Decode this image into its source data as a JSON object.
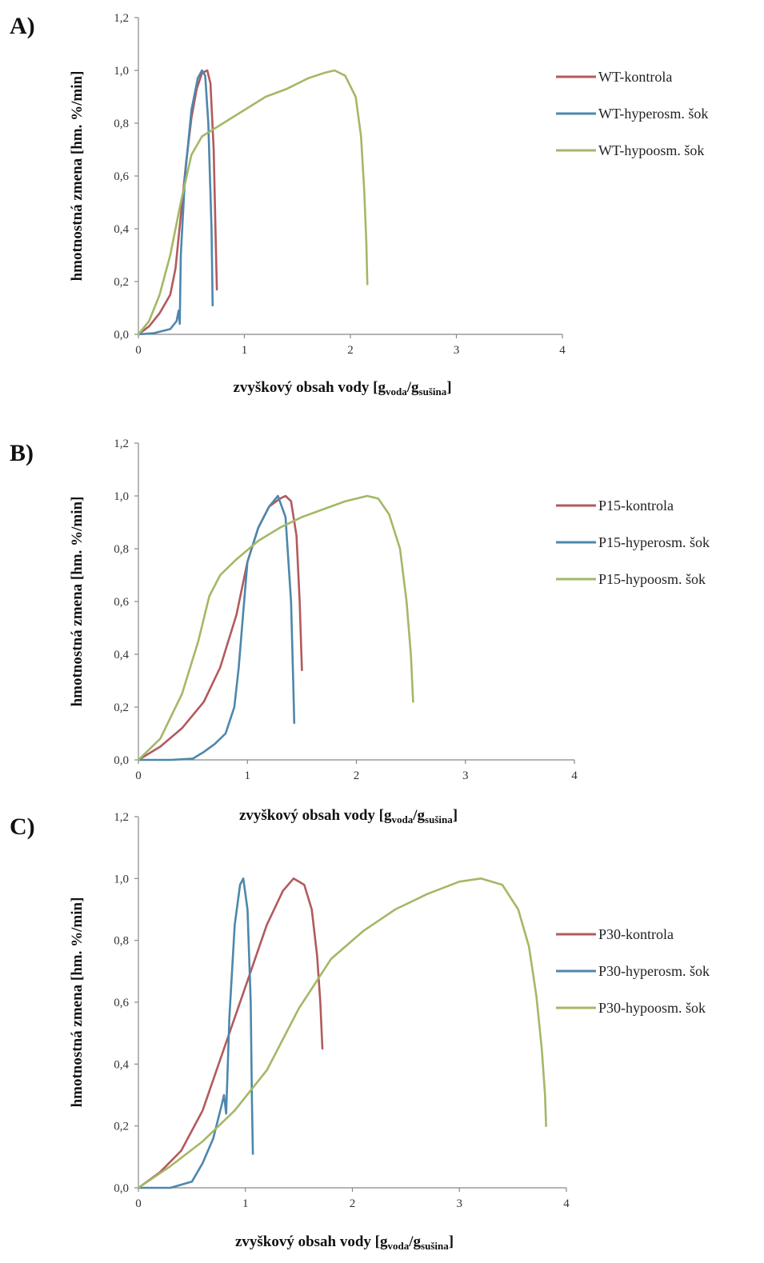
{
  "colors": {
    "kontrola": "#B25A5D",
    "hyperosm": "#4D87AC",
    "hypoosm": "#A3B866"
  },
  "chart_data": [
    {
      "type": "line",
      "panel_label": "A)",
      "xlabel_main": "zvyškový obsah vody [g",
      "xlabel_sub1": "voda",
      "xlabel_sep": "/g",
      "xlabel_sub2": "sušina",
      "xlabel_end": "]",
      "ylabel": "hmotnostná zmena [hm. %/min]",
      "xlim": [
        0,
        4
      ],
      "ylim": [
        0,
        1.2
      ],
      "xticks": [
        "0",
        "1",
        "2",
        "3",
        "4"
      ],
      "yticks": [
        "0,0",
        "0,2",
        "0,4",
        "0,6",
        "0,8",
        "1,0",
        "1,2"
      ],
      "legend_position": "right",
      "series": [
        {
          "name": "WT-kontrola",
          "color_key": "kontrola",
          "points": [
            [
              0.0,
              0.0
            ],
            [
              0.1,
              0.03
            ],
            [
              0.2,
              0.08
            ],
            [
              0.3,
              0.15
            ],
            [
              0.35,
              0.25
            ],
            [
              0.4,
              0.45
            ],
            [
              0.45,
              0.65
            ],
            [
              0.5,
              0.82
            ],
            [
              0.55,
              0.93
            ],
            [
              0.6,
              0.99
            ],
            [
              0.65,
              1.0
            ],
            [
              0.68,
              0.95
            ],
            [
              0.71,
              0.7
            ],
            [
              0.73,
              0.35
            ],
            [
              0.74,
              0.17
            ]
          ]
        },
        {
          "name": "WT-hyperosm. šok",
          "color_key": "hyperosm",
          "points": [
            [
              0.0,
              0.0
            ],
            [
              0.15,
              0.005
            ],
            [
              0.3,
              0.02
            ],
            [
              0.36,
              0.05
            ],
            [
              0.38,
              0.09
            ],
            [
              0.39,
              0.04
            ],
            [
              0.4,
              0.3
            ],
            [
              0.44,
              0.6
            ],
            [
              0.5,
              0.85
            ],
            [
              0.56,
              0.97
            ],
            [
              0.6,
              1.0
            ],
            [
              0.63,
              0.98
            ],
            [
              0.66,
              0.8
            ],
            [
              0.69,
              0.4
            ],
            [
              0.7,
              0.11
            ]
          ]
        },
        {
          "name": "WT-hypoosm. šok",
          "color_key": "hypoosm",
          "points": [
            [
              0.0,
              0.0
            ],
            [
              0.1,
              0.05
            ],
            [
              0.2,
              0.15
            ],
            [
              0.3,
              0.3
            ],
            [
              0.4,
              0.5
            ],
            [
              0.5,
              0.68
            ],
            [
              0.6,
              0.75
            ],
            [
              0.8,
              0.8
            ],
            [
              1.0,
              0.85
            ],
            [
              1.2,
              0.9
            ],
            [
              1.4,
              0.93
            ],
            [
              1.6,
              0.97
            ],
            [
              1.75,
              0.99
            ],
            [
              1.85,
              1.0
            ],
            [
              1.95,
              0.98
            ],
            [
              2.05,
              0.9
            ],
            [
              2.1,
              0.75
            ],
            [
              2.13,
              0.55
            ],
            [
              2.15,
              0.35
            ],
            [
              2.16,
              0.19
            ]
          ]
        }
      ]
    },
    {
      "type": "line",
      "panel_label": "B)",
      "xlabel_main": "zvyškový obsah vody [g",
      "xlabel_sub1": "voda",
      "xlabel_sep": "/g",
      "xlabel_sub2": "sušina",
      "xlabel_end": "]",
      "ylabel": "hmotnostná zmena [hm. %/min]",
      "xlim": [
        0,
        4
      ],
      "ylim": [
        0,
        1.2
      ],
      "xticks": [
        "0",
        "1",
        "2",
        "3",
        "4"
      ],
      "yticks": [
        "0,0",
        "0,2",
        "0,4",
        "0,6",
        "0,8",
        "1,0",
        "1,2"
      ],
      "legend_position": "right",
      "series": [
        {
          "name": "P15-kontrola",
          "color_key": "kontrola",
          "points": [
            [
              0.0,
              0.0
            ],
            [
              0.2,
              0.05
            ],
            [
              0.4,
              0.12
            ],
            [
              0.6,
              0.22
            ],
            [
              0.75,
              0.35
            ],
            [
              0.9,
              0.55
            ],
            [
              1.0,
              0.75
            ],
            [
              1.1,
              0.88
            ],
            [
              1.2,
              0.96
            ],
            [
              1.3,
              0.99
            ],
            [
              1.35,
              1.0
            ],
            [
              1.4,
              0.98
            ],
            [
              1.45,
              0.85
            ],
            [
              1.48,
              0.6
            ],
            [
              1.5,
              0.34
            ]
          ]
        },
        {
          "name": "P15-hyperosm. šok",
          "color_key": "hyperosm",
          "points": [
            [
              0.0,
              0.0
            ],
            [
              0.3,
              0.0
            ],
            [
              0.5,
              0.005
            ],
            [
              0.6,
              0.03
            ],
            [
              0.7,
              0.06
            ],
            [
              0.8,
              0.1
            ],
            [
              0.88,
              0.2
            ],
            [
              0.92,
              0.35
            ],
            [
              0.96,
              0.55
            ],
            [
              1.0,
              0.75
            ],
            [
              1.1,
              0.88
            ],
            [
              1.2,
              0.96
            ],
            [
              1.28,
              1.0
            ],
            [
              1.35,
              0.92
            ],
            [
              1.4,
              0.6
            ],
            [
              1.42,
              0.3
            ],
            [
              1.43,
              0.14
            ]
          ]
        },
        {
          "name": "P15-hypoosm. šok",
          "color_key": "hypoosm",
          "points": [
            [
              0.0,
              0.0
            ],
            [
              0.2,
              0.08
            ],
            [
              0.4,
              0.25
            ],
            [
              0.55,
              0.45
            ],
            [
              0.65,
              0.62
            ],
            [
              0.75,
              0.7
            ],
            [
              0.9,
              0.76
            ],
            [
              1.1,
              0.83
            ],
            [
              1.3,
              0.88
            ],
            [
              1.5,
              0.92
            ],
            [
              1.7,
              0.95
            ],
            [
              1.9,
              0.98
            ],
            [
              2.1,
              1.0
            ],
            [
              2.2,
              0.99
            ],
            [
              2.3,
              0.93
            ],
            [
              2.4,
              0.8
            ],
            [
              2.46,
              0.6
            ],
            [
              2.5,
              0.4
            ],
            [
              2.52,
              0.22
            ]
          ]
        }
      ]
    },
    {
      "type": "line",
      "panel_label": "C)",
      "xlabel_main": "zvyškový obsah vody [g",
      "xlabel_sub1": "voda",
      "xlabel_sep": "/g",
      "xlabel_sub2": "sušina",
      "xlabel_end": "]",
      "ylabel": "hmotnostná zmena [hm. %/min]",
      "xlim": [
        0,
        4
      ],
      "ylim": [
        0,
        1.2
      ],
      "xticks": [
        "0",
        "1",
        "2",
        "3",
        "4"
      ],
      "yticks": [
        "0,0",
        "0,2",
        "0,4",
        "0,6",
        "0,8",
        "1,0",
        "1,2"
      ],
      "legend_position": "right",
      "series": [
        {
          "name": "P30-kontrola",
          "color_key": "kontrola",
          "points": [
            [
              0.0,
              0.0
            ],
            [
              0.2,
              0.05
            ],
            [
              0.4,
              0.12
            ],
            [
              0.6,
              0.25
            ],
            [
              0.8,
              0.45
            ],
            [
              1.0,
              0.65
            ],
            [
              1.2,
              0.85
            ],
            [
              1.35,
              0.96
            ],
            [
              1.45,
              1.0
            ],
            [
              1.55,
              0.98
            ],
            [
              1.62,
              0.9
            ],
            [
              1.67,
              0.75
            ],
            [
              1.7,
              0.6
            ],
            [
              1.72,
              0.45
            ]
          ]
        },
        {
          "name": "P30-hyperosm. šok",
          "color_key": "hyperosm",
          "points": [
            [
              0.0,
              0.0
            ],
            [
              0.3,
              0.0
            ],
            [
              0.5,
              0.02
            ],
            [
              0.6,
              0.08
            ],
            [
              0.7,
              0.16
            ],
            [
              0.78,
              0.27
            ],
            [
              0.8,
              0.3
            ],
            [
              0.82,
              0.24
            ],
            [
              0.85,
              0.55
            ],
            [
              0.9,
              0.85
            ],
            [
              0.95,
              0.98
            ],
            [
              0.98,
              1.0
            ],
            [
              1.02,
              0.9
            ],
            [
              1.05,
              0.6
            ],
            [
              1.06,
              0.3
            ],
            [
              1.07,
              0.11
            ]
          ]
        },
        {
          "name": "P30-hypoosm. šok",
          "color_key": "hypoosm",
          "points": [
            [
              0.0,
              0.0
            ],
            [
              0.3,
              0.07
            ],
            [
              0.6,
              0.15
            ],
            [
              0.9,
              0.25
            ],
            [
              1.2,
              0.38
            ],
            [
              1.5,
              0.58
            ],
            [
              1.8,
              0.74
            ],
            [
              2.1,
              0.83
            ],
            [
              2.4,
              0.9
            ],
            [
              2.7,
              0.95
            ],
            [
              3.0,
              0.99
            ],
            [
              3.2,
              1.0
            ],
            [
              3.4,
              0.98
            ],
            [
              3.55,
              0.9
            ],
            [
              3.65,
              0.78
            ],
            [
              3.72,
              0.62
            ],
            [
              3.77,
              0.45
            ],
            [
              3.8,
              0.3
            ],
            [
              3.81,
              0.2
            ]
          ]
        }
      ]
    }
  ]
}
